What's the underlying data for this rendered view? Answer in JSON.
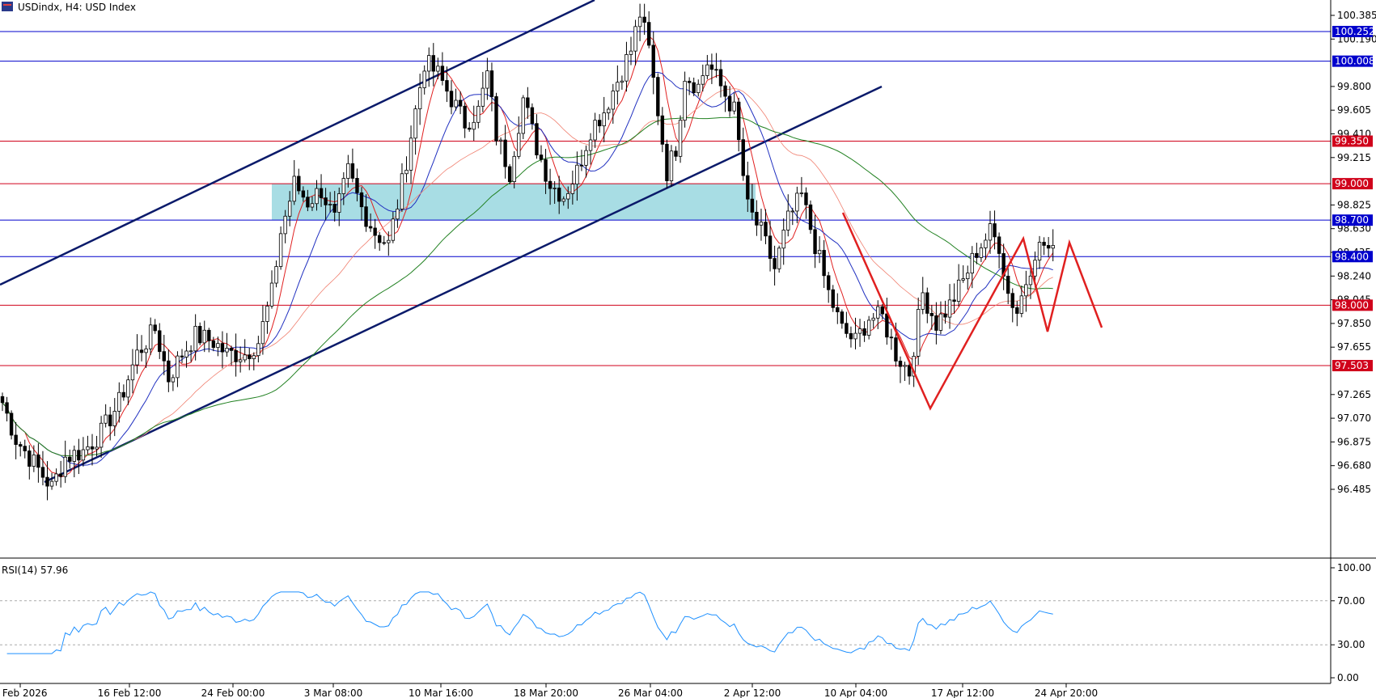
{
  "header": {
    "symbol_line": "USDindx, H4:  USD Index",
    "icon": "chart-window-icon"
  },
  "rsi_panel": {
    "label": "RSI(14) 57.96",
    "ticks": [
      "100.00",
      "70.00",
      "30.00",
      "0.00"
    ]
  },
  "chart_data": {
    "type": "candlestick",
    "symbol": "USDindx",
    "timeframe": "H4",
    "name": "USD Index",
    "ylim": [
      96.3,
      100.55
    ],
    "y_ticks": [
      "100.385",
      "100.190",
      "99.800",
      "99.605",
      "99.410",
      "99.215",
      "98.825",
      "98.630",
      "98.435",
      "98.240",
      "98.045",
      "97.850",
      "97.655",
      "97.265",
      "97.070",
      "96.875",
      "96.680",
      "96.485"
    ],
    "x_ticks": [
      "9 Feb 2026",
      "16 Feb 12:00",
      "24 Feb 00:00",
      "3 Mar 08:00",
      "10 Mar 16:00",
      "18 Mar 20:00",
      "26 Mar 04:00",
      "2 Apr 12:00",
      "10 Apr 04:00",
      "17 Apr 12:00",
      "24 Apr 20:00"
    ],
    "horizontal_levels": [
      {
        "value": 100.252,
        "label": "100.252",
        "color": "#0000cc"
      },
      {
        "value": 100.008,
        "label": "100.008",
        "color": "#0000cc"
      },
      {
        "value": 99.35,
        "label": "99.350",
        "color": "#d0021b"
      },
      {
        "value": 99.0,
        "label": "99.000",
        "color": "#d0021b"
      },
      {
        "value": 98.7,
        "label": "98.700",
        "color": "#0000cc"
      },
      {
        "value": 98.4,
        "label": "98.400",
        "color": "#0000cc"
      },
      {
        "value": 98.0,
        "label": "98.000",
        "color": "#d0021b"
      },
      {
        "value": 97.503,
        "label": "97.503",
        "color": "#d0021b"
      }
    ],
    "zone": {
      "from": 98.7,
      "to": 99.0,
      "color": "#a8dde4"
    },
    "close_price_path": [
      [
        0,
        97.2
      ],
      [
        3,
        96.9
      ],
      [
        7,
        96.7
      ],
      [
        11,
        96.5
      ],
      [
        14,
        96.75
      ],
      [
        18,
        96.8
      ],
      [
        22,
        96.95
      ],
      [
        26,
        97.2
      ],
      [
        30,
        97.6
      ],
      [
        34,
        97.8
      ],
      [
        37,
        97.4
      ],
      [
        40,
        97.6
      ],
      [
        43,
        97.75
      ],
      [
        47,
        97.7
      ],
      [
        50,
        97.6
      ],
      [
        54,
        97.6
      ],
      [
        57,
        97.7
      ],
      [
        60,
        98.1
      ],
      [
        62,
        98.6
      ],
      [
        65,
        99.0
      ],
      [
        68,
        98.85
      ],
      [
        71,
        98.95
      ],
      [
        74,
        98.7
      ],
      [
        77,
        99.1
      ],
      [
        80,
        98.8
      ],
      [
        83,
        98.6
      ],
      [
        86,
        98.5
      ],
      [
        89,
        99.0
      ],
      [
        92,
        99.6
      ],
      [
        94,
        100.0
      ],
      [
        97,
        99.9
      ],
      [
        100,
        99.7
      ],
      [
        103,
        99.5
      ],
      [
        106,
        99.6
      ],
      [
        108,
        99.9
      ],
      [
        110,
        99.4
      ],
      [
        113,
        99.1
      ],
      [
        116,
        99.7
      ],
      [
        119,
        99.3
      ],
      [
        122,
        99.0
      ],
      [
        125,
        98.9
      ],
      [
        128,
        99.1
      ],
      [
        131,
        99.45
      ],
      [
        134,
        99.6
      ],
      [
        137,
        99.85
      ],
      [
        140,
        100.1
      ],
      [
        142,
        100.4
      ],
      [
        144,
        100.1
      ],
      [
        146,
        99.6
      ],
      [
        148,
        99.1
      ],
      [
        150,
        99.3
      ],
      [
        152,
        99.9
      ],
      [
        155,
        99.8
      ],
      [
        157,
        100.0
      ],
      [
        160,
        99.8
      ],
      [
        163,
        99.6
      ],
      [
        166,
        98.8
      ],
      [
        169,
        98.6
      ],
      [
        172,
        98.3
      ],
      [
        175,
        98.7
      ],
      [
        178,
        98.9
      ],
      [
        181,
        98.5
      ],
      [
        184,
        98.1
      ],
      [
        187,
        97.8
      ],
      [
        190,
        97.7
      ],
      [
        193,
        97.9
      ],
      [
        196,
        97.9
      ],
      [
        199,
        97.6
      ],
      [
        202,
        97.45
      ],
      [
        205,
        98.1
      ],
      [
        208,
        97.85
      ],
      [
        211,
        98.0
      ],
      [
        214,
        98.2
      ],
      [
        217,
        98.45
      ],
      [
        220,
        98.6
      ],
      [
        222,
        98.5
      ],
      [
        224,
        98.1
      ],
      [
        226,
        97.95
      ],
      [
        228,
        98.2
      ],
      [
        230,
        98.45
      ],
      [
        232,
        98.5
      ],
      [
        234,
        98.42
      ]
    ],
    "drawn_trendlines": "ascending channel (upper and lower), extended lower channel line, red zig-zag W pattern projection",
    "indicators": [
      "SMA red (short)",
      "SMA blue (medium)",
      "SMA salmon (long)",
      "SMA green (longest)"
    ],
    "rsi": {
      "period": 14,
      "last": 57.96,
      "levels": [
        70,
        30
      ],
      "ylim": [
        0,
        100
      ]
    }
  }
}
